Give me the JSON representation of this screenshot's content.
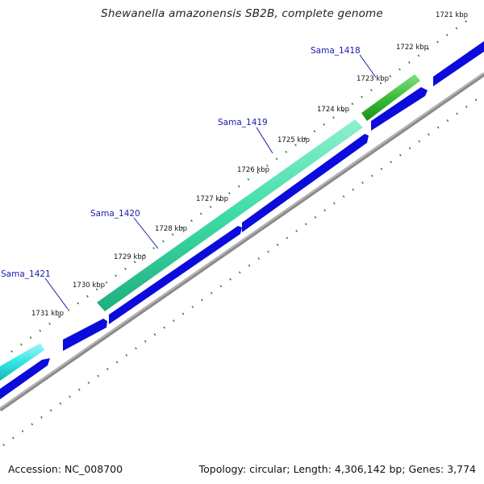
{
  "header": {
    "title": "Shewanella amazonensis SB2B, complete genome"
  },
  "footer": {
    "accession": "Accession: NC_008700",
    "summary": "Topology: circular; Length: 4,306,142 bp; Genes: 3,774"
  },
  "colors": {
    "cds_forward": "#0b0bdc",
    "backbone": "#8a8a8a",
    "tick": "#1a8a1a",
    "gene_label": "#1a1aaa",
    "gene_1418": "#33bb33",
    "gene_1419": "#33ddaa",
    "gene_1421": "#22dddd"
  },
  "scale": {
    "unit": "kbp",
    "labels": [
      "1721 kbp",
      "1722 kbp",
      "1723 kbp",
      "1724 kbp",
      "1725 kbp",
      "1726 kbp",
      "1727 kbp",
      "1728 kbp",
      "1729 kbp",
      "1730 kbp",
      "1731 kbp"
    ]
  },
  "genes": [
    {
      "name": "Sama_1418"
    },
    {
      "name": "Sama_1419"
    },
    {
      "name": "Sama_1420"
    },
    {
      "name": "Sama_1421"
    }
  ]
}
